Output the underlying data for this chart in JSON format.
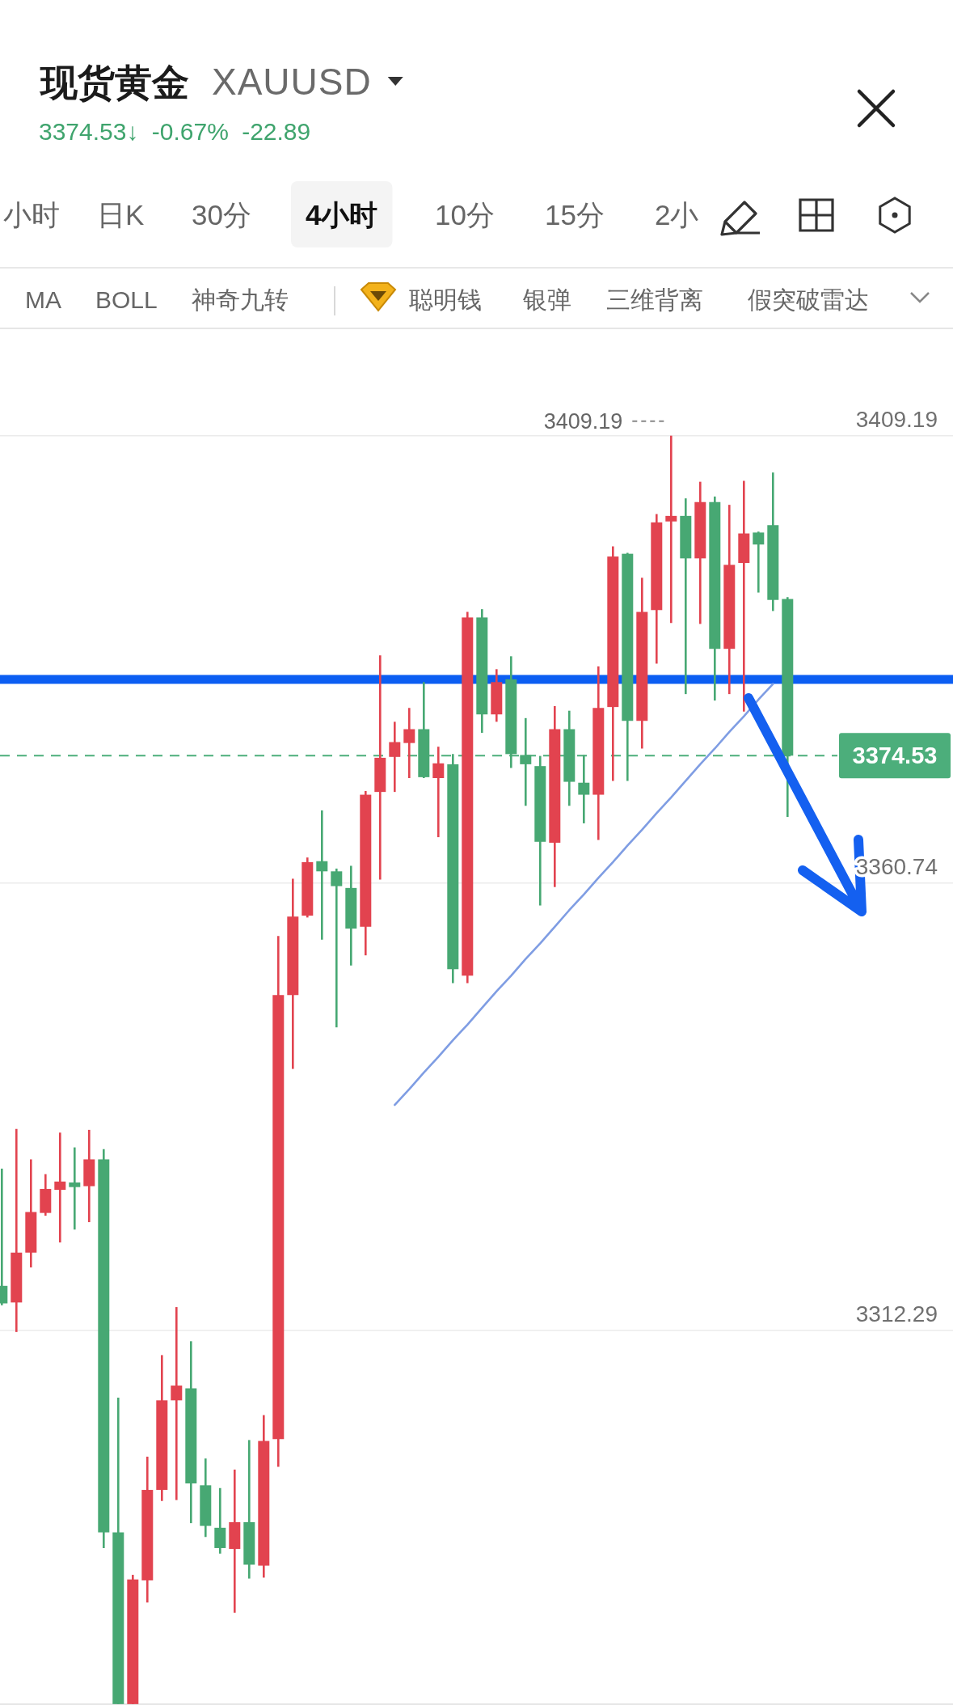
{
  "chart_data": {
    "type": "candlestick",
    "title": "现货黄金",
    "subtitle": "XAUUSD",
    "annotations": [
      "3374.53↓ -0.67% -22.89",
      "小时",
      "日K",
      "30分",
      "4小时",
      "10分",
      "15分",
      "2小",
      "MA",
      "BOLL",
      "神奇九转",
      "聪明钱",
      "银弹",
      "三维背离",
      "假突破雷达",
      "3409.19"
    ],
    "categories": [
      null,
      null,
      null,
      null,
      null,
      null,
      null,
      null,
      null,
      null,
      null,
      null,
      null,
      null,
      null,
      null,
      null,
      null,
      null,
      null,
      null,
      null,
      null,
      null,
      null,
      null,
      null,
      null,
      null,
      null,
      null,
      null,
      null,
      null,
      null,
      null,
      null,
      null,
      null,
      null,
      null,
      null,
      null,
      null,
      null,
      null,
      null,
      null,
      null,
      null,
      null,
      null,
      null,
      null,
      null
    ],
    "ohlc": [
      [
        3317.1,
        3329.8,
        3315.0,
        3315.2
      ],
      [
        3315.3,
        3334.1,
        3312.1,
        3320.7
      ],
      [
        3320.7,
        3330.8,
        3319.1,
        3325.1
      ],
      [
        3325.0,
        3329.2,
        3324.7,
        3327.6
      ],
      [
        3327.5,
        3333.7,
        3321.8,
        3328.4
      ],
      [
        3328.3,
        3332.1,
        3323.2,
        3327.8
      ],
      [
        3327.9,
        3334.0,
        3324.0,
        3330.8
      ],
      [
        3330.8,
        3331.9,
        3288.7,
        3290.4
      ],
      [
        3290.4,
        3305.0,
        3271.8,
        3271.8
      ],
      [
        3271.8,
        3285.8,
        3271.8,
        3285.3
      ],
      [
        3285.2,
        3298.6,
        3282.8,
        3295.0
      ],
      [
        3295.0,
        3309.6,
        3293.8,
        3304.7
      ],
      [
        3304.7,
        3314.8,
        3293.9,
        3306.3
      ],
      [
        3306.0,
        3311.1,
        3291.4,
        3295.7
      ],
      [
        3295.5,
        3298.4,
        3289.9,
        3291.1
      ],
      [
        3290.9,
        3295.2,
        3288.1,
        3288.7
      ],
      [
        3288.6,
        3297.2,
        3281.7,
        3291.5
      ],
      [
        3291.5,
        3300.4,
        3285.4,
        3286.9
      ],
      [
        3286.8,
        3303.1,
        3285.5,
        3300.3
      ],
      [
        3300.5,
        3355.0,
        3297.5,
        3348.6
      ],
      [
        3348.6,
        3361.2,
        3340.6,
        3357.1
      ],
      [
        3357.2,
        3363.5,
        3357.0,
        3363.0
      ],
      [
        3363.1,
        3368.6,
        3354.6,
        3362.0
      ],
      [
        3362.0,
        3362.3,
        3345.1,
        3360.4
      ],
      [
        3360.2,
        3362.6,
        3351.8,
        3355.8
      ],
      [
        3356.0,
        3370.7,
        3352.9,
        3370.3
      ],
      [
        3370.6,
        3385.4,
        3361.1,
        3374.3
      ],
      [
        3374.4,
        3378.2,
        3370.6,
        3376.0
      ],
      [
        3375.9,
        3379.7,
        3372.1,
        3377.4
      ],
      [
        3377.4,
        3382.5,
        3372.1,
        3372.2
      ],
      [
        3372.1,
        3375.5,
        3365.7,
        3373.7
      ],
      [
        3373.6,
        3374.7,
        3349.9,
        3351.4
      ],
      [
        3350.7,
        3390.1,
        3349.9,
        3389.5
      ],
      [
        3389.5,
        3390.4,
        3377.0,
        3379.0
      ],
      [
        3379.0,
        3383.9,
        3378.2,
        3382.5
      ],
      [
        3382.8,
        3385.3,
        3373.2,
        3374.7
      ],
      [
        3374.6,
        3378.6,
        3369.1,
        3373.6
      ],
      [
        3373.4,
        3374.5,
        3358.3,
        3365.2
      ],
      [
        3365.1,
        3379.9,
        3360.3,
        3377.4
      ],
      [
        3377.4,
        3379.4,
        3369.1,
        3371.7
      ],
      [
        3371.6,
        3374.6,
        3367.2,
        3370.3
      ],
      [
        3370.3,
        3384.2,
        3365.4,
        3379.7
      ],
      [
        3379.8,
        3397.2,
        3371.8,
        3396.1
      ],
      [
        3396.4,
        3396.5,
        3371.8,
        3378.3
      ],
      [
        3378.3,
        3393.8,
        3375.3,
        3390.1
      ],
      [
        3390.3,
        3400.7,
        3384.5,
        3399.8
      ],
      [
        3399.9,
        3409.19,
        3388.9,
        3400.5
      ],
      [
        3400.5,
        3402.4,
        3381.2,
        3395.9
      ],
      [
        3395.9,
        3404.2,
        3388.8,
        3402.0
      ],
      [
        3402.0,
        3402.6,
        3380.5,
        3386.1
      ],
      [
        3386.1,
        3401.7,
        3381.2,
        3395.2
      ],
      [
        3395.4,
        3404.3,
        3379.3,
        3398.6
      ],
      [
        3398.7,
        3398.8,
        3392.2,
        3397.4
      ],
      [
        3399.5,
        3405.2,
        3390.2,
        3391.4
      ],
      [
        3391.5,
        3391.7,
        3367.9,
        3374.53
      ]
    ],
    "colors": [
      "#47a873",
      "#e2434f",
      "#e2434f",
      "#e2434f",
      "#e2434f",
      "#47a873",
      "#e2434f",
      "#47a873",
      "#47a873",
      "#e2434f",
      "#e2434f",
      "#e2434f",
      "#e2434f",
      "#47a873",
      "#47a873",
      "#47a873",
      "#e2434f",
      "#47a873",
      "#e2434f",
      "#e2434f",
      "#e2434f",
      "#e2434f",
      "#47a873",
      "#47a873",
      "#47a873",
      "#e2434f",
      "#e2434f",
      "#e2434f",
      "#e2434f",
      "#47a873",
      "#e2434f",
      "#47a873",
      "#e2434f",
      "#47a873",
      "#e2434f",
      "#47a873",
      "#47a873",
      "#47a873",
      "#e2434f",
      "#47a873",
      "#47a873",
      "#e2434f",
      "#e2434f",
      "#47a873",
      "#e2434f",
      "#e2434f",
      "#e2434f",
      "#47a873",
      "#e2434f",
      "#47a873",
      "#e2434f",
      "#e2434f",
      "#47a873",
      "#47a873",
      "#47a873"
    ],
    "series": [
      {
        "type": "line",
        "color": "#7f9de3",
        "values": [
          null,
          null,
          null,
          null,
          null,
          null,
          null,
          null,
          null,
          null,
          null,
          null,
          null,
          null,
          null,
          null,
          null,
          null,
          null,
          null,
          null,
          null,
          null,
          null,
          null,
          null,
          null,
          3336.7,
          3338.4,
          3340.2,
          3341.9,
          3343.7,
          3345.4,
          3347.2,
          3349.0,
          3350.7,
          3352.5,
          3354.2,
          3356.0,
          3357.8,
          3359.5,
          3361.3,
          3363.0,
          3364.8,
          3366.5,
          3368.3,
          3370.0,
          3371.8,
          3373.6,
          3375.3,
          3377.1,
          3378.8,
          3380.6,
          3382.3,
          null
        ]
      }
    ],
    "ylim": [
      3271.7,
      3420.9
    ],
    "yticks": [
      3409.19,
      3360.74,
      3312.29
    ],
    "tick_labels": "y",
    "grid": "y",
    "ref_lines": [
      {
        "axis": "y",
        "value": 3374.53,
        "label": "3374.53",
        "color": "#4cae7b",
        "line_style": "dashed"
      },
      {
        "axis": "y",
        "value": 3382.8,
        "color": "#0c5ef2",
        "line_style": "solid"
      }
    ]
  }
}
